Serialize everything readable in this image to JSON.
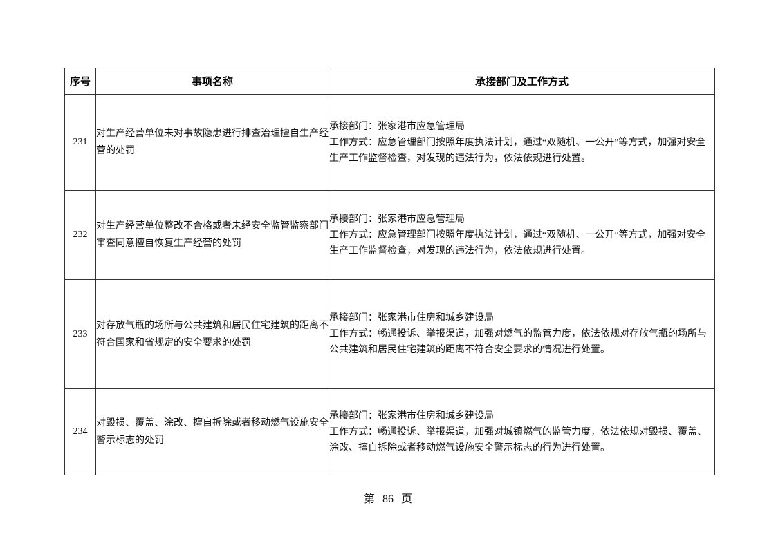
{
  "table": {
    "headers": [
      "序号",
      "事项名称",
      "承接部门及工作方式"
    ],
    "rows": [
      {
        "no": "231",
        "name": "对生产经营单位未对事故隐患进行排查治理擅自生产经营的处罚",
        "dept": "承接部门：张家港市应急管理局",
        "method": "工作方式：应急管理部门按照年度执法计划，通过“双随机、一公开”等方式，加强对安全生产工作监督检查，对发现的违法行为，依法依规进行处置。"
      },
      {
        "no": "232",
        "name": "对生产经营单位整改不合格或者未经安全监管监察部门审查同意擅自恢复生产经营的处罚",
        "dept": "承接部门：张家港市应急管理局",
        "method": "工作方式：应急管理部门按照年度执法计划，通过“双随机、一公开”等方式，加强对安全生产工作监督检查，对发现的违法行为，依法依规进行处置。"
      },
      {
        "no": "233",
        "name": "对存放气瓶的场所与公共建筑和居民住宅建筑的距离不符合国家和省规定的安全要求的处罚",
        "dept": "承接部门：张家港市住房和城乡建设局",
        "method": "工作方式：畅通投诉、举报渠道，加强对燃气的监管力度，依法依规对存放气瓶的场所与公共建筑和居民住宅建筑的距离不符合安全要求的情况进行处置。"
      },
      {
        "no": "234",
        "name": "对毁损、覆盖、涂改、擅自拆除或者移动燃气设施安全警示标志的处罚",
        "dept": "承接部门：张家港市住房和城乡建设局",
        "method": "工作方式：畅通投诉、举报渠道，加强对城镇燃气的监管力度，依法依规对毁损、覆盖、涂改、擅自拆除或者移动燃气设施安全警示标志的行为进行处置。"
      }
    ]
  },
  "page": {
    "footer": "第 86 页"
  }
}
